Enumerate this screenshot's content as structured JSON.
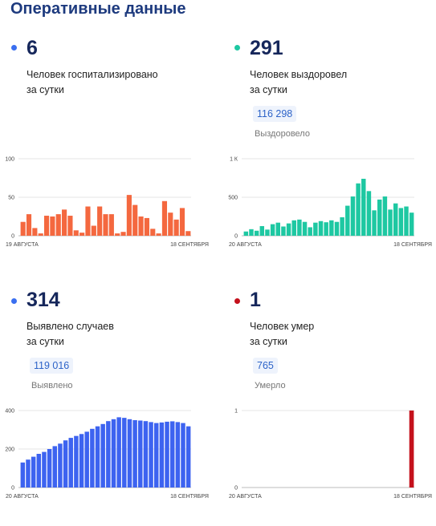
{
  "page_title": "Оперативные данные",
  "colors": {
    "title": "#1d3a7e",
    "number": "#16275b"
  },
  "chart_data": [
    {
      "type": "bar",
      "stat": "6",
      "description": "Человек госпитализировано\nза сутки",
      "color": "#f4683f",
      "dot_color": "#3a6ff0",
      "yticks": [
        "0",
        "50",
        "100"
      ],
      "ylim": [
        0,
        100
      ],
      "x_start": "19 АВГУСТА",
      "x_end": "18 СЕНТЯБРЯ",
      "values": [
        18,
        28,
        10,
        3,
        26,
        25,
        28,
        34,
        26,
        7,
        4,
        38,
        13,
        38,
        28,
        28,
        3,
        5,
        53,
        40,
        25,
        23,
        9,
        3,
        45,
        30,
        21,
        36,
        6
      ]
    },
    {
      "type": "bar",
      "stat": "291",
      "description": "Человек выздоровел\nза сутки",
      "badge_value": "116 298",
      "badge_label": "Выздоровело",
      "color": "#1ec8a2",
      "dot_color": "#1ec8a2",
      "yticks": [
        "0",
        "500",
        "1 К"
      ],
      "ylim": [
        0,
        1000
      ],
      "x_start": "20 АВГУСТА",
      "x_end": "18 СЕНТЯБРЯ",
      "values": [
        55,
        85,
        65,
        125,
        80,
        150,
        170,
        120,
        160,
        200,
        210,
        180,
        110,
        170,
        190,
        175,
        200,
        180,
        240,
        390,
        510,
        680,
        740,
        580,
        330,
        470,
        510,
        340,
        420,
        360,
        380,
        300
      ]
    },
    {
      "type": "bar",
      "stat": "314",
      "description": "Выявлено случаев\nза сутки",
      "badge_value": "119 016",
      "badge_label": "Выявлено",
      "color": "#3d63f0",
      "dot_color": "#3a6ff0",
      "yticks": [
        "0",
        "200",
        "400"
      ],
      "ylim": [
        0,
        400
      ],
      "x_start": "20 АВГУСТА",
      "x_end": "18 СЕНТЯБРЯ",
      "values": [
        130,
        145,
        160,
        175,
        185,
        200,
        215,
        228,
        245,
        258,
        268,
        278,
        290,
        305,
        318,
        330,
        345,
        355,
        365,
        362,
        355,
        350,
        348,
        345,
        340,
        335,
        338,
        342,
        344,
        340,
        335,
        318
      ]
    },
    {
      "type": "bar",
      "stat": "1",
      "description": "Человек умер\nза сутки",
      "badge_value": "765",
      "badge_label": "Умерло",
      "color": "#c4111c",
      "dot_color": "#c4111c",
      "yticks": [
        "0",
        "1"
      ],
      "ylim": [
        0,
        1
      ],
      "x_start": "20 АВГУСТА",
      "x_end": "18 СЕНТЯБРЯ",
      "values": [
        0,
        0,
        0,
        0,
        0,
        0,
        0,
        0,
        0,
        0,
        0,
        0,
        0,
        0,
        0,
        0,
        0,
        0,
        0,
        0,
        0,
        0,
        0,
        0,
        0,
        0,
        0,
        0,
        0,
        0,
        1
      ]
    }
  ]
}
